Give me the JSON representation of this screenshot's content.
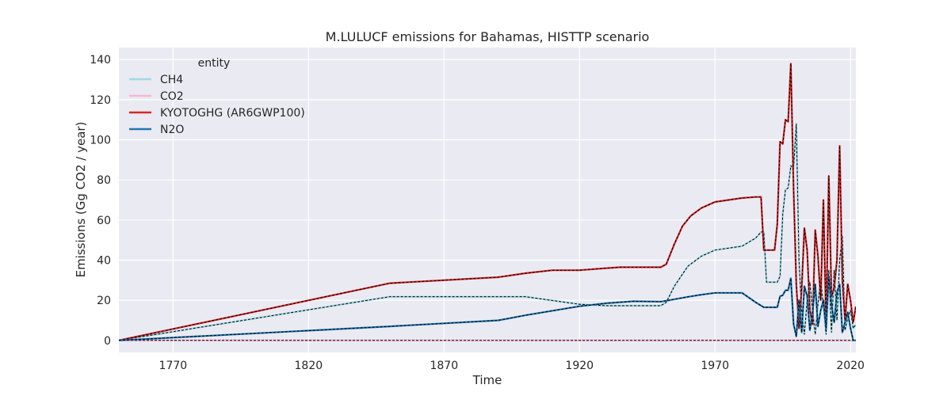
{
  "chart_data": {
    "type": "line",
    "title": "M.LULUCF emissions for Bahamas, HISTTP scenario",
    "xlabel": "Time",
    "ylabel": "Emissions (Gg CO2 / year)",
    "xlim": [
      1750,
      2022
    ],
    "ylim": [
      -6,
      146
    ],
    "xticks": [
      1770,
      1820,
      1870,
      1920,
      1970,
      2020
    ],
    "yticks": [
      0,
      20,
      40,
      60,
      80,
      100,
      120,
      140
    ],
    "grid": true,
    "legend": {
      "title": "entity",
      "placement": "top-left"
    },
    "series": [
      {
        "name": "CH4",
        "color": "#9edae5",
        "width": 2.2,
        "dashed_overlay": true,
        "points": [
          [
            1750,
            0
          ],
          [
            1850,
            21.8
          ],
          [
            1900,
            21.8
          ],
          [
            1920,
            18
          ],
          [
            1930,
            17.3
          ],
          [
            1950,
            17.3
          ],
          [
            1952,
            19
          ],
          [
            1955,
            27
          ],
          [
            1960,
            37
          ],
          [
            1965,
            42
          ],
          [
            1970,
            45
          ],
          [
            1980,
            47
          ],
          [
            1985,
            51
          ],
          [
            1987,
            54
          ],
          [
            1988,
            54
          ],
          [
            1989,
            29
          ],
          [
            1993,
            29
          ],
          [
            1994,
            32
          ],
          [
            1995,
            63
          ],
          [
            1996,
            75
          ],
          [
            1997,
            76
          ],
          [
            1998,
            87
          ],
          [
            1999,
            86
          ],
          [
            2000,
            108
          ],
          [
            2001,
            40
          ],
          [
            2002,
            14
          ],
          [
            2003,
            3
          ],
          [
            2004,
            20
          ],
          [
            2005,
            29
          ],
          [
            2006,
            15
          ],
          [
            2007,
            3
          ],
          [
            2008,
            18
          ],
          [
            2009,
            30
          ],
          [
            2010,
            17
          ],
          [
            2011,
            3
          ],
          [
            2012,
            35
          ],
          [
            2013,
            4
          ],
          [
            2014,
            35
          ],
          [
            2015,
            10
          ],
          [
            2016,
            40
          ],
          [
            2017,
            52
          ],
          [
            2018,
            5
          ],
          [
            2019,
            11
          ],
          [
            2020,
            15
          ],
          [
            2021,
            6
          ],
          [
            2022,
            8
          ]
        ]
      },
      {
        "name": "CO2",
        "color": "#f7b6d2",
        "width": 2.2,
        "dashed_overlay": true,
        "points": [
          [
            1750,
            0
          ],
          [
            2022,
            0
          ]
        ]
      },
      {
        "name": "KYOTOGHG (AR6GWP100)",
        "color": "#d62728",
        "width": 2.2,
        "dashed_overlay": true,
        "points": [
          [
            1750,
            0
          ],
          [
            1850,
            28.5
          ],
          [
            1890,
            31.5
          ],
          [
            1900,
            33.5
          ],
          [
            1910,
            35
          ],
          [
            1920,
            35
          ],
          [
            1930,
            36
          ],
          [
            1935,
            36.5
          ],
          [
            1950,
            36.5
          ],
          [
            1952,
            38
          ],
          [
            1955,
            48
          ],
          [
            1958,
            57
          ],
          [
            1961,
            62
          ],
          [
            1965,
            66
          ],
          [
            1970,
            69
          ],
          [
            1980,
            71
          ],
          [
            1985,
            71.5
          ],
          [
            1987,
            71.5
          ],
          [
            1988,
            45
          ],
          [
            1992,
            45
          ],
          [
            1993,
            58
          ],
          [
            1994,
            99
          ],
          [
            1995,
            98
          ],
          [
            1996,
            110
          ],
          [
            1997,
            109
          ],
          [
            1998,
            138
          ],
          [
            1999,
            75
          ],
          [
            2000,
            28
          ],
          [
            2001,
            6
          ],
          [
            2002,
            26
          ],
          [
            2003,
            56
          ],
          [
            2004,
            45
          ],
          [
            2005,
            15
          ],
          [
            2006,
            8
          ],
          [
            2007,
            55
          ],
          [
            2008,
            42
          ],
          [
            2009,
            20
          ],
          [
            2010,
            70
          ],
          [
            2011,
            8
          ],
          [
            2012,
            82
          ],
          [
            2013,
            22
          ],
          [
            2014,
            26
          ],
          [
            2015,
            40
          ],
          [
            2016,
            97
          ],
          [
            2017,
            30
          ],
          [
            2018,
            10
          ],
          [
            2019,
            28
          ],
          [
            2020,
            20
          ],
          [
            2021,
            9
          ],
          [
            2022,
            17
          ]
        ]
      },
      {
        "name": "N2O",
        "color": "#1f77b4",
        "width": 2.2,
        "dashed_overlay": true,
        "points": [
          [
            1750,
            0
          ],
          [
            1850,
            7
          ],
          [
            1890,
            10
          ],
          [
            1900,
            12.5
          ],
          [
            1920,
            17
          ],
          [
            1930,
            18.5
          ],
          [
            1940,
            19.5
          ],
          [
            1950,
            19.3
          ],
          [
            1955,
            20.5
          ],
          [
            1960,
            21.7
          ],
          [
            1965,
            22.8
          ],
          [
            1970,
            23.7
          ],
          [
            1980,
            23.7
          ],
          [
            1985,
            19
          ],
          [
            1988,
            16.5
          ],
          [
            1990,
            16.5
          ],
          [
            1993,
            16.5
          ],
          [
            1994,
            22
          ],
          [
            1995,
            22.5
          ],
          [
            1996,
            25
          ],
          [
            1997,
            25
          ],
          [
            1998,
            31
          ],
          [
            1999,
            8
          ],
          [
            2000,
            2
          ],
          [
            2001,
            20
          ],
          [
            2002,
            4
          ],
          [
            2003,
            27
          ],
          [
            2004,
            22
          ],
          [
            2005,
            5
          ],
          [
            2006,
            14
          ],
          [
            2007,
            28
          ],
          [
            2008,
            7
          ],
          [
            2009,
            15
          ],
          [
            2010,
            20
          ],
          [
            2011,
            6
          ],
          [
            2012,
            32
          ],
          [
            2013,
            18
          ],
          [
            2014,
            9
          ],
          [
            2015,
            24
          ],
          [
            2016,
            28
          ],
          [
            2017,
            4
          ],
          [
            2018,
            9
          ],
          [
            2019,
            14
          ],
          [
            2020,
            6
          ],
          [
            2021,
            0
          ],
          [
            2022,
            0
          ]
        ]
      }
    ]
  }
}
